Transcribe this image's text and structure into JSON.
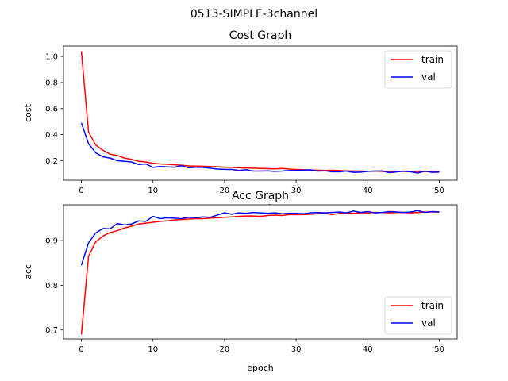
{
  "suptitle": "0513-SIMPLE-3channel",
  "chart_data": [
    {
      "type": "line",
      "title": "Cost Graph",
      "xlabel": "epoch",
      "ylabel": "cost",
      "xlim": [
        -2.5,
        52.5
      ],
      "ylim": [
        0.05,
        1.08
      ],
      "xticks": [
        0,
        10,
        20,
        30,
        40,
        50
      ],
      "yticks": [
        0.2,
        0.4,
        0.6,
        0.8,
        1.0
      ],
      "ytick_labels": [
        "0.2",
        "0.4",
        "0.6",
        "0.8",
        "1.0"
      ],
      "legend_placement": "upper right",
      "x": [
        0,
        1,
        2,
        3,
        4,
        5,
        6,
        7,
        8,
        9,
        10,
        11,
        12,
        13,
        14,
        15,
        16,
        17,
        18,
        19,
        20,
        21,
        22,
        23,
        24,
        25,
        26,
        27,
        28,
        29,
        30,
        31,
        32,
        33,
        34,
        35,
        36,
        37,
        38,
        39,
        40,
        41,
        42,
        43,
        44,
        45,
        46,
        47,
        48,
        49,
        50
      ],
      "series": [
        {
          "name": "train",
          "color": "#ff0000",
          "values": [
            1.04,
            0.42,
            0.32,
            0.28,
            0.25,
            0.24,
            0.22,
            0.21,
            0.195,
            0.19,
            0.18,
            0.175,
            0.172,
            0.168,
            0.165,
            0.16,
            0.158,
            0.157,
            0.155,
            0.153,
            0.15,
            0.148,
            0.145,
            0.143,
            0.142,
            0.14,
            0.138,
            0.137,
            0.14,
            0.135,
            0.132,
            0.13,
            0.128,
            0.127,
            0.125,
            0.126,
            0.124,
            0.122,
            0.12,
            0.12,
            0.118,
            0.12,
            0.117,
            0.116,
            0.118,
            0.117,
            0.115,
            0.117,
            0.116,
            0.115,
            0.113
          ]
        },
        {
          "name": "val",
          "color": "#0000ff",
          "values": [
            0.49,
            0.33,
            0.26,
            0.23,
            0.22,
            0.2,
            0.195,
            0.19,
            0.17,
            0.175,
            0.148,
            0.155,
            0.152,
            0.15,
            0.162,
            0.145,
            0.15,
            0.148,
            0.142,
            0.135,
            0.133,
            0.132,
            0.125,
            0.13,
            0.12,
            0.12,
            0.122,
            0.118,
            0.12,
            0.124,
            0.125,
            0.127,
            0.13,
            0.12,
            0.122,
            0.115,
            0.114,
            0.12,
            0.11,
            0.112,
            0.118,
            0.12,
            0.122,
            0.108,
            0.113,
            0.12,
            0.115,
            0.105,
            0.12,
            0.11,
            0.112
          ]
        }
      ]
    },
    {
      "type": "line",
      "title": "Acc Graph",
      "xlabel": "epoch",
      "ylabel": "acc",
      "xlim": [
        -2.5,
        52.5
      ],
      "ylim": [
        0.68,
        0.98
      ],
      "xticks": [
        0,
        10,
        20,
        30,
        40,
        50
      ],
      "yticks": [
        0.7,
        0.8,
        0.9
      ],
      "ytick_labels": [
        "0.7",
        "0.8",
        "0.9"
      ],
      "legend_placement": "lower right",
      "x": [
        0,
        1,
        2,
        3,
        4,
        5,
        6,
        7,
        8,
        9,
        10,
        11,
        12,
        13,
        14,
        15,
        16,
        17,
        18,
        19,
        20,
        21,
        22,
        23,
        24,
        25,
        26,
        27,
        28,
        29,
        30,
        31,
        32,
        33,
        34,
        35,
        36,
        37,
        38,
        39,
        40,
        41,
        42,
        43,
        44,
        45,
        46,
        47,
        48,
        49,
        50
      ],
      "series": [
        {
          "name": "train",
          "color": "#ff0000",
          "values": [
            0.69,
            0.865,
            0.897,
            0.91,
            0.918,
            0.922,
            0.928,
            0.932,
            0.937,
            0.939,
            0.941,
            0.943,
            0.944,
            0.946,
            0.947,
            0.948,
            0.949,
            0.949,
            0.95,
            0.951,
            0.952,
            0.953,
            0.954,
            0.955,
            0.955,
            0.954,
            0.956,
            0.957,
            0.956,
            0.958,
            0.958,
            0.958,
            0.959,
            0.96,
            0.961,
            0.958,
            0.961,
            0.962,
            0.961,
            0.962,
            0.962,
            0.963,
            0.963,
            0.962,
            0.963,
            0.963,
            0.962,
            0.963,
            0.964,
            0.964,
            0.964
          ]
        },
        {
          "name": "val",
          "color": "#0000ff",
          "values": [
            0.845,
            0.895,
            0.917,
            0.927,
            0.926,
            0.938,
            0.935,
            0.937,
            0.944,
            0.943,
            0.954,
            0.949,
            0.951,
            0.95,
            0.949,
            0.952,
            0.951,
            0.953,
            0.952,
            0.957,
            0.962,
            0.959,
            0.962,
            0.961,
            0.963,
            0.962,
            0.961,
            0.962,
            0.96,
            0.961,
            0.961,
            0.96,
            0.962,
            0.963,
            0.962,
            0.963,
            0.964,
            0.962,
            0.966,
            0.963,
            0.965,
            0.962,
            0.963,
            0.965,
            0.964,
            0.963,
            0.964,
            0.967,
            0.963,
            0.965,
            0.964
          ]
        }
      ]
    }
  ]
}
